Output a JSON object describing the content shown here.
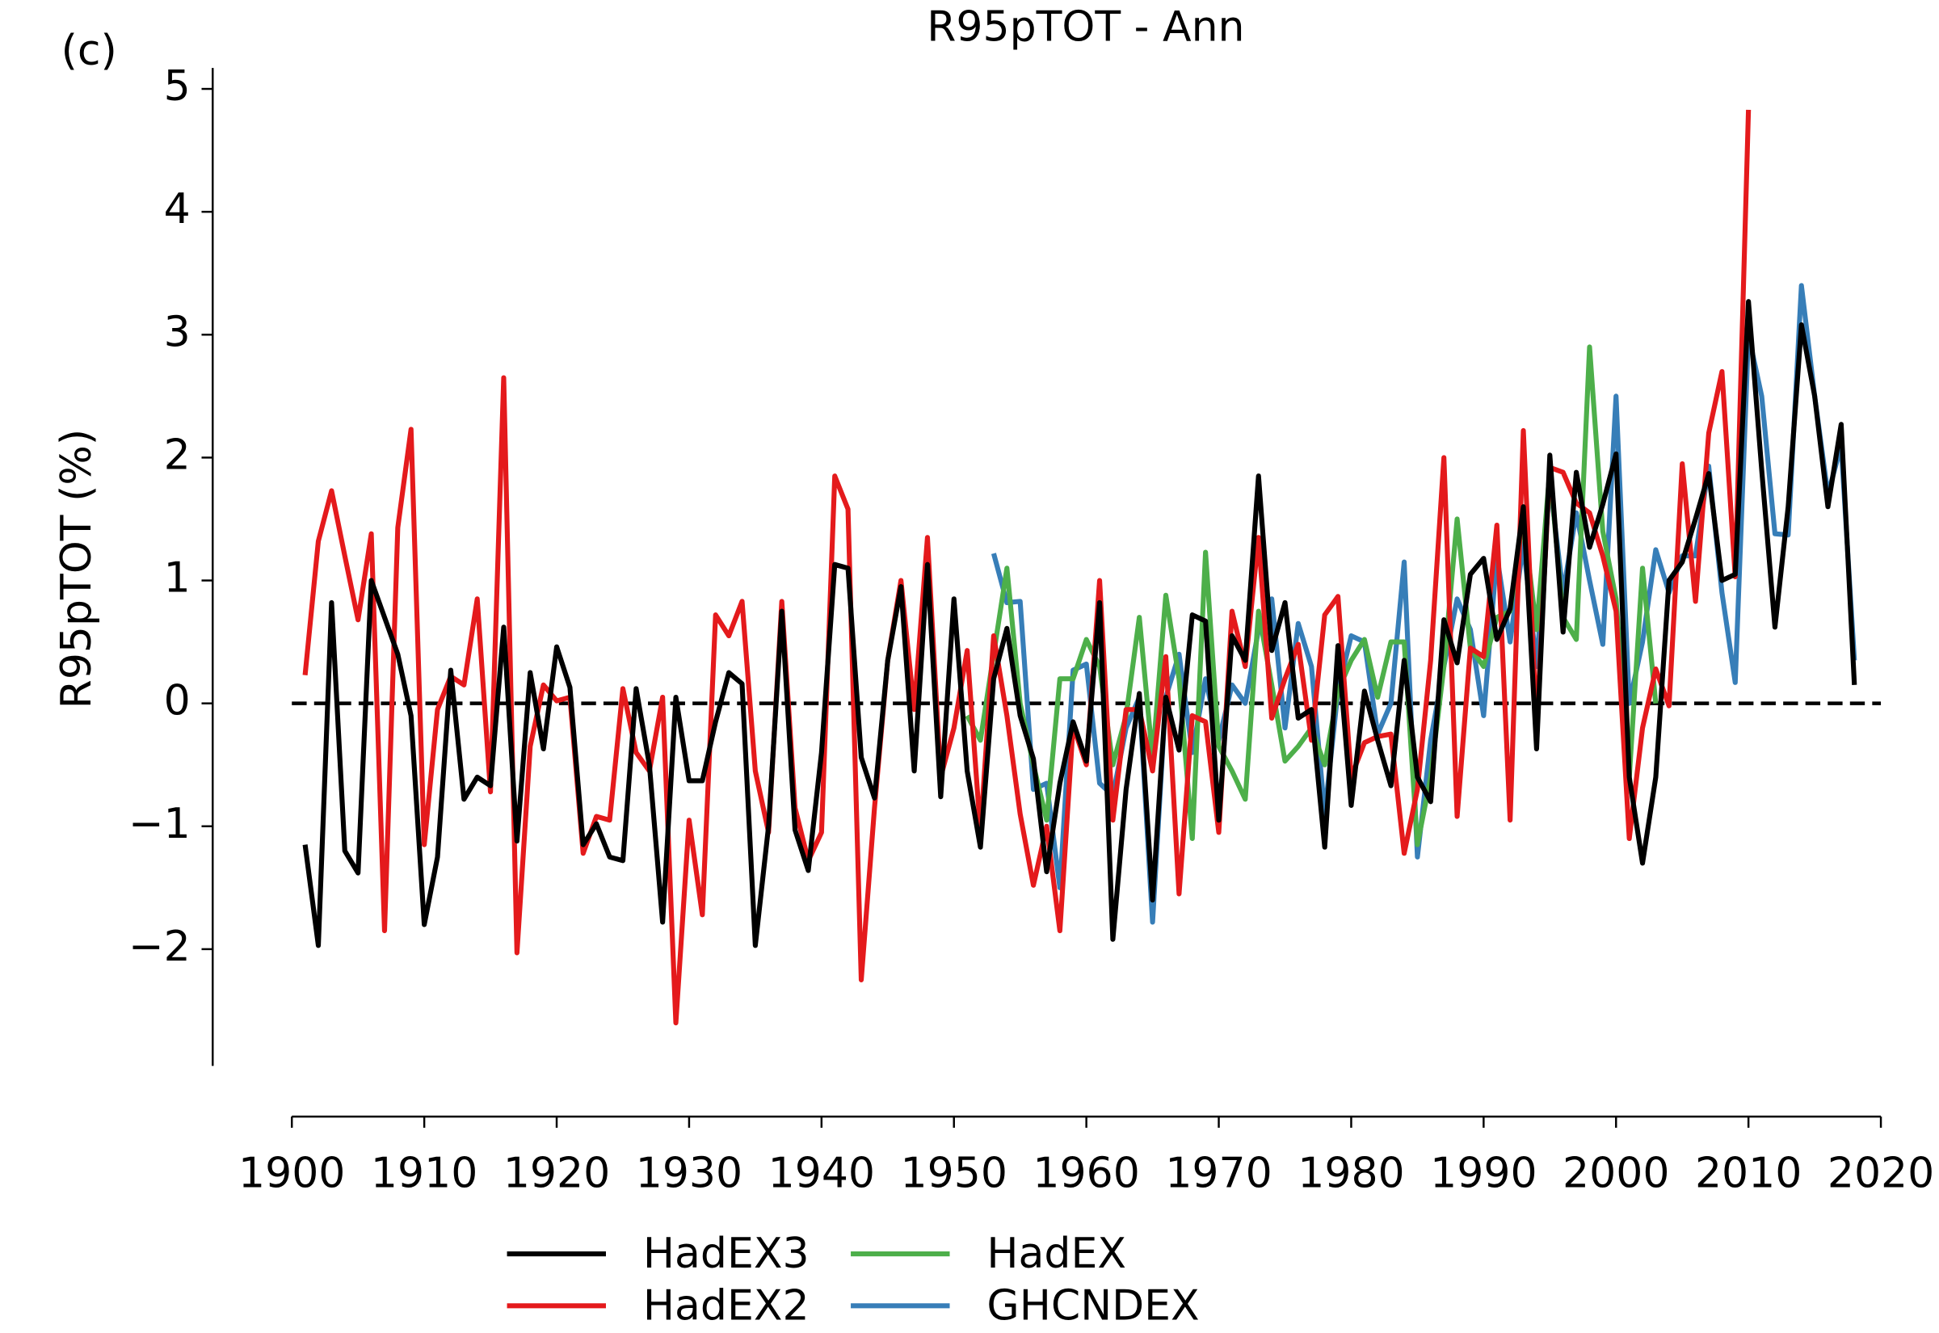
{
  "chart_data": {
    "type": "line",
    "title": "R95pTOT - Ann",
    "panel_label": "(c)",
    "y_label": "R95pTOT (%)",
    "xlim": [
      1900,
      2020
    ],
    "xticks": [
      1900,
      1910,
      1920,
      1930,
      1940,
      1950,
      1960,
      1970,
      1980,
      1990,
      2000,
      2010,
      2020
    ],
    "ylim": [
      -2.95,
      5.17
    ],
    "yticks": [
      {
        "value": -2,
        "label": "−2"
      },
      {
        "value": -1,
        "label": "−1"
      },
      0,
      1,
      2,
      3,
      4,
      5
    ],
    "hline": 0,
    "legend": "bottom",
    "series": [
      {
        "name": "HadEX3",
        "color": "#000000",
        "x": [
          1901,
          1902,
          1903,
          1904,
          1905,
          1906,
          1907,
          1908,
          1909,
          1910,
          1911,
          1912,
          1913,
          1914,
          1915,
          1916,
          1917,
          1918,
          1919,
          1920,
          1921,
          1922,
          1923,
          1924,
          1925,
          1926,
          1927,
          1928,
          1929,
          1930,
          1931,
          1932,
          1933,
          1934,
          1935,
          1936,
          1937,
          1938,
          1939,
          1940,
          1941,
          1942,
          1943,
          1944,
          1945,
          1946,
          1947,
          1948,
          1949,
          1950,
          1951,
          1952,
          1953,
          1954,
          1955,
          1956,
          1957,
          1958,
          1959,
          1960,
          1961,
          1962,
          1963,
          1964,
          1965,
          1966,
          1967,
          1968,
          1969,
          1970,
          1971,
          1972,
          1973,
          1974,
          1975,
          1976,
          1977,
          1978,
          1979,
          1980,
          1981,
          1982,
          1983,
          1984,
          1985,
          1986,
          1987,
          1988,
          1989,
          1990,
          1991,
          1992,
          1993,
          1994,
          1995,
          1996,
          1997,
          1998,
          1999,
          2000,
          2001,
          2002,
          2003,
          2004,
          2005,
          2006,
          2007,
          2008,
          2009,
          2010,
          2011,
          2012,
          2013,
          2014,
          2015,
          2016,
          2017,
          2018
        ],
        "values": [
          -1.15,
          -1.97,
          0.82,
          -1.2,
          -1.38,
          1.0,
          0.7,
          0.4,
          -0.1,
          -1.8,
          -1.25,
          0.27,
          -0.78,
          -0.6,
          -0.67,
          0.62,
          -1.12,
          0.25,
          -0.37,
          0.46,
          0.13,
          -1.15,
          -0.98,
          -1.25,
          -1.28,
          0.12,
          -0.5,
          -1.78,
          0.05,
          -0.63,
          -0.63,
          -0.15,
          0.25,
          0.16,
          -1.97,
          -1.0,
          0.75,
          -1.03,
          -1.36,
          -0.4,
          1.13,
          1.1,
          -0.44,
          -0.77,
          0.35,
          0.95,
          -0.55,
          1.13,
          -0.76,
          0.85,
          -0.55,
          -1.17,
          0.2,
          0.61,
          -0.1,
          -0.45,
          -1.37,
          -0.65,
          -0.15,
          -0.47,
          0.82,
          -1.92,
          -0.7,
          0.08,
          -1.6,
          0.05,
          -0.38,
          0.72,
          0.67,
          -0.95,
          0.55,
          0.35,
          1.85,
          0.43,
          0.82,
          -0.12,
          -0.05,
          -1.17,
          0.47,
          -0.83,
          0.1,
          -0.3,
          -0.67,
          0.35,
          -0.6,
          -0.8,
          0.68,
          0.33,
          1.05,
          1.18,
          0.52,
          0.77,
          1.6,
          -0.37,
          2.02,
          0.58,
          1.88,
          1.27,
          1.62,
          2.03,
          -0.6,
          -1.3,
          -0.6,
          1.0,
          1.15,
          1.5,
          1.87,
          1.0,
          1.05,
          3.27,
          1.9,
          0.62,
          1.6,
          3.08,
          2.5,
          1.6,
          2.27,
          0.15
        ]
      },
      {
        "name": "HadEX2",
        "color": "#e41a1c",
        "x": [
          1901,
          1902,
          1903,
          1904,
          1905,
          1906,
          1907,
          1908,
          1909,
          1910,
          1911,
          1912,
          1913,
          1914,
          1915,
          1916,
          1917,
          1918,
          1919,
          1920,
          1921,
          1922,
          1923,
          1924,
          1925,
          1926,
          1927,
          1928,
          1929,
          1930,
          1931,
          1932,
          1933,
          1934,
          1935,
          1936,
          1937,
          1938,
          1939,
          1940,
          1941,
          1942,
          1943,
          1944,
          1945,
          1946,
          1947,
          1948,
          1949,
          1950,
          1951,
          1952,
          1953,
          1954,
          1955,
          1956,
          1957,
          1958,
          1959,
          1960,
          1961,
          1962,
          1963,
          1964,
          1965,
          1966,
          1967,
          1968,
          1969,
          1970,
          1971,
          1972,
          1973,
          1974,
          1975,
          1976,
          1977,
          1978,
          1979,
          1980,
          1981,
          1982,
          1983,
          1984,
          1985,
          1986,
          1987,
          1988,
          1989,
          1990,
          1991,
          1992,
          1993,
          1994,
          1995,
          1996,
          1997,
          1998,
          1999,
          2000,
          2001,
          2002,
          2003,
          2004,
          2005,
          2006,
          2007,
          2008,
          2009,
          2010
        ],
        "values": [
          0.23,
          1.32,
          1.73,
          1.2,
          0.68,
          1.38,
          -1.85,
          1.43,
          2.23,
          -1.15,
          -0.05,
          0.22,
          0.15,
          0.85,
          -0.72,
          2.65,
          -2.03,
          -0.35,
          0.15,
          0.02,
          0.05,
          -1.22,
          -0.92,
          -0.95,
          0.12,
          -0.4,
          -0.55,
          0.05,
          -2.6,
          -0.95,
          -1.72,
          0.72,
          0.55,
          0.83,
          -0.55,
          -1.05,
          0.83,
          -0.85,
          -1.28,
          -1.05,
          1.85,
          1.58,
          -2.25,
          -0.85,
          0.35,
          1.0,
          -0.05,
          1.35,
          -0.6,
          -0.2,
          0.43,
          -1.05,
          0.55,
          -0.1,
          -0.9,
          -1.48,
          -1.0,
          -1.85,
          -0.18,
          -0.5,
          1.0,
          -0.95,
          -0.05,
          -0.05,
          -0.55,
          0.38,
          -1.55,
          -0.1,
          -0.15,
          -1.05,
          0.75,
          0.3,
          1.35,
          -0.12,
          0.2,
          0.48,
          -0.3,
          0.72,
          0.87,
          -0.6,
          -0.32,
          -0.27,
          -0.25,
          -1.22,
          -0.7,
          0.35,
          2.0,
          -0.92,
          0.45,
          0.38,
          1.45,
          -0.95,
          2.22,
          -0.2,
          1.92,
          1.88,
          1.63,
          1.55,
          1.2,
          0.75,
          -1.1,
          -0.2,
          0.28,
          -0.02,
          1.95,
          0.83,
          2.2,
          2.7,
          1.03,
          4.83
        ]
      },
      {
        "name": "HadEX",
        "color": "#4daf4a",
        "x": [
          1951,
          1952,
          1953,
          1954,
          1955,
          1956,
          1957,
          1958,
          1959,
          1960,
          1961,
          1962,
          1963,
          1964,
          1965,
          1966,
          1967,
          1968,
          1969,
          1970,
          1971,
          1972,
          1973,
          1974,
          1975,
          1976,
          1977,
          1978,
          1979,
          1980,
          1981,
          1982,
          1983,
          1984,
          1985,
          1986,
          1987,
          1988,
          1989,
          1990,
          1991,
          1992,
          1993,
          1994,
          1995,
          1996,
          1997,
          1998,
          1999,
          2000,
          2001,
          2002,
          2003
        ],
        "values": [
          -0.1,
          -0.3,
          0.4,
          1.1,
          0.0,
          -0.5,
          -0.95,
          0.2,
          0.2,
          0.52,
          0.3,
          -0.5,
          -0.1,
          0.7,
          -0.45,
          0.88,
          0.2,
          -1.1,
          1.23,
          -0.35,
          -0.55,
          -0.78,
          0.75,
          0.15,
          -0.47,
          -0.35,
          -0.2,
          -0.5,
          0.1,
          0.35,
          0.52,
          0.05,
          0.5,
          0.5,
          -1.15,
          -0.6,
          0.3,
          1.5,
          0.45,
          0.3,
          0.7,
          0.75,
          1.5,
          0.6,
          1.9,
          0.7,
          0.52,
          2.9,
          1.4,
          0.85,
          -0.6,
          1.1,
          0.0
        ]
      },
      {
        "name": "GHCNDEX",
        "color": "#377eb8",
        "x": [
          1953,
          1954,
          1955,
          1956,
          1957,
          1958,
          1959,
          1960,
          1961,
          1962,
          1963,
          1964,
          1965,
          1966,
          1967,
          1968,
          1969,
          1970,
          1971,
          1972,
          1973,
          1974,
          1975,
          1976,
          1977,
          1978,
          1979,
          1980,
          1981,
          1982,
          1983,
          1984,
          1985,
          1986,
          1987,
          1988,
          1989,
          1990,
          1991,
          1992,
          1993,
          1994,
          1995,
          1996,
          1997,
          1998,
          1999,
          2000,
          2001,
          2002,
          2003,
          2004,
          2005,
          2006,
          2007,
          2008,
          2009,
          2010,
          2011,
          2012,
          2013,
          2014,
          2015,
          2016,
          2017,
          2018
        ],
        "values": [
          1.22,
          0.82,
          0.83,
          -0.7,
          -0.65,
          -1.5,
          0.27,
          0.32,
          -0.65,
          -0.75,
          -0.2,
          0.05,
          -1.78,
          0.05,
          0.4,
          -0.4,
          0.2,
          -0.3,
          0.15,
          0.0,
          0.6,
          0.85,
          -0.2,
          0.65,
          0.3,
          -0.9,
          0.1,
          0.55,
          0.5,
          -0.25,
          0.0,
          1.15,
          -1.25,
          -0.3,
          0.3,
          0.85,
          0.6,
          -0.1,
          1.2,
          0.5,
          1.3,
          0.3,
          1.8,
          0.9,
          1.55,
          1.0,
          0.48,
          2.5,
          0.0,
          0.5,
          1.25,
          0.9,
          1.2,
          1.2,
          1.93,
          0.9,
          0.17,
          3.0,
          2.5,
          1.38,
          1.37,
          3.4,
          2.5,
          1.7,
          2.1,
          0.35
        ]
      }
    ]
  }
}
